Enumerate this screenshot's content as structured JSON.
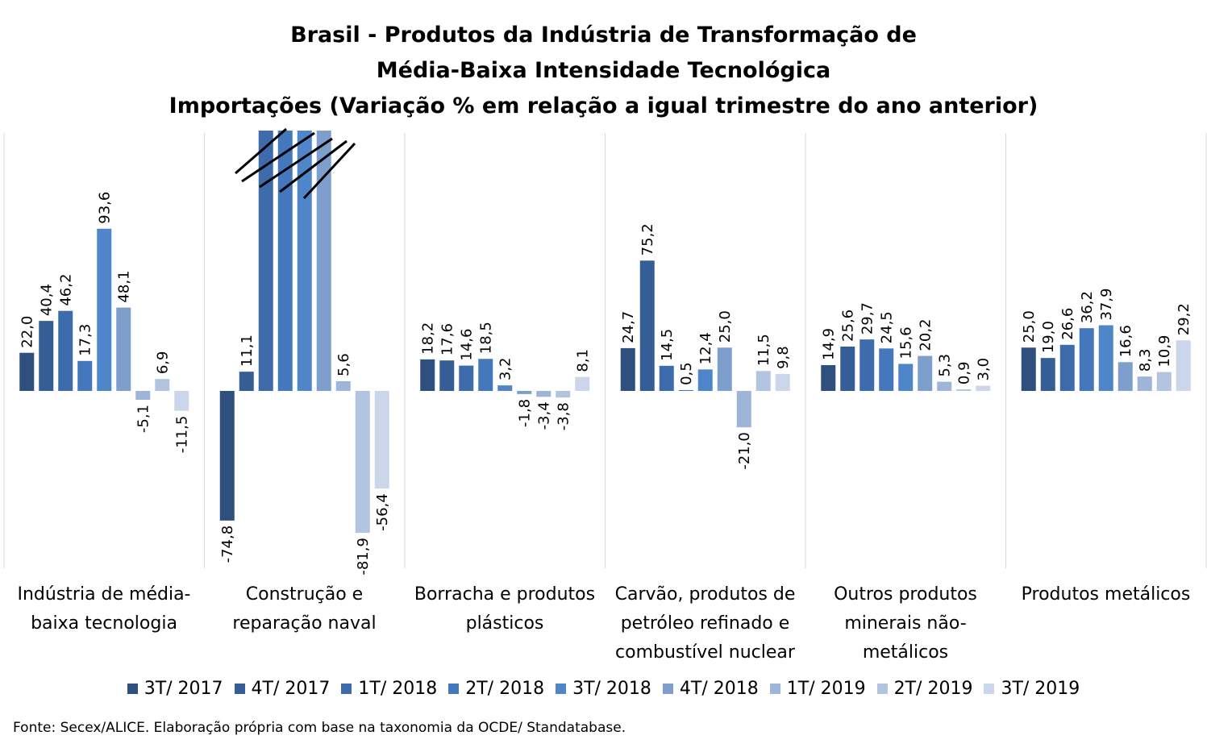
{
  "title_lines": [
    "Brasil - Produtos da Indústria de Transformação de",
    "Média-Baixa Intensidade Tecnológica",
    "Importações (Variação % em relação a igual trimestre do ano anterior)"
  ],
  "source": "Fonte: Secex/ALICE. Elaboração própria com base na taxonomia da OCDE/ Standatabase.",
  "chart_data": {
    "type": "bar",
    "title": "Brasil - Produtos da Indústria de Transformação de Média-Baixa Intensidade Tecnológica Importações (Variação % em relação a igual trimestre do ano anterior)",
    "categories": [
      "Indústria de média-baixa tecnologia",
      "Construção e reparação naval",
      "Borracha e produtos plásticos",
      "Carvão, produtos de petróleo refinado e combustível nuclear",
      "Outros produtos minerais não-metálicos",
      "Produtos metálicos"
    ],
    "category_label_lines": [
      [
        "Indústria de média-",
        "baixa tecnologia"
      ],
      [
        "Construção e",
        "reparação naval"
      ],
      [
        "Borracha e produtos",
        "plásticos"
      ],
      [
        "Carvão, produtos de",
        "petróleo refinado e",
        "combustível nuclear"
      ],
      [
        "Outros produtos",
        "minerais não-",
        "metálicos"
      ],
      [
        "Produtos metálicos"
      ]
    ],
    "series": [
      {
        "name": "3T/ 2017",
        "color": "#2f4f7f",
        "values": [
          22.0,
          -74.8,
          18.2,
          24.7,
          14.9,
          25.0
        ],
        "labels": [
          "22,0",
          "-74,8",
          "18,2",
          "24,7",
          "14,9",
          "25,0"
        ]
      },
      {
        "name": "4T/ 2017",
        "color": "#355e96",
        "values": [
          40.4,
          11.1,
          17.6,
          75.2,
          25.6,
          19.0
        ],
        "labels": [
          "40,4",
          "11,1",
          "17,6",
          "75,2",
          "25,6",
          "19,0"
        ]
      },
      {
        "name": "1T/ 2018",
        "color": "#3d6bab",
        "values": [
          46.2,
          null,
          14.6,
          14.5,
          29.7,
          26.6
        ],
        "labels": [
          "46,2",
          "",
          "14,6",
          "14,5",
          "29,7",
          "26,6"
        ]
      },
      {
        "name": "2T/ 2018",
        "color": "#4577bd",
        "values": [
          17.3,
          null,
          18.5,
          0.5,
          24.5,
          36.2
        ],
        "labels": [
          "17,3",
          "",
          "18,5",
          "0,5",
          "24,5",
          "36,2"
        ]
      },
      {
        "name": "3T/ 2018",
        "color": "#4f86c9",
        "values": [
          93.6,
          null,
          3.2,
          12.4,
          15.6,
          37.9
        ],
        "labels": [
          "93,6",
          "",
          "3,2",
          "12,4",
          "15,6",
          "37,9"
        ]
      },
      {
        "name": "4T/ 2018",
        "color": "#7e9ecb",
        "values": [
          48.1,
          null,
          -1.8,
          25.0,
          20.2,
          16.6
        ],
        "labels": [
          "48,1",
          "",
          "-1,8",
          "25,0",
          "20,2",
          "16,6"
        ]
      },
      {
        "name": "1T/ 2019",
        "color": "#9eb4d8",
        "values": [
          -5.1,
          5.6,
          -3.4,
          -21.0,
          5.3,
          8.3
        ],
        "labels": [
          "-5,1",
          "5,6",
          "-3,4",
          "-21,0",
          "5,3",
          "8,3"
        ]
      },
      {
        "name": "2T/ 2019",
        "color": "#b3c4e1",
        "values": [
          6.9,
          -81.9,
          -3.8,
          11.5,
          0.9,
          10.9
        ],
        "labels": [
          "6,9",
          "-81,9",
          "-3,8",
          "11,5",
          "0,9",
          "10,9"
        ]
      },
      {
        "name": "3T/ 2019",
        "color": "#cbd6ea",
        "values": [
          -11.5,
          -56.4,
          8.1,
          9.8,
          3.0,
          29.2
        ],
        "labels": [
          "-11,5",
          "-56,4",
          "8,1",
          "9,8",
          "3,0",
          "29,2"
        ]
      }
    ],
    "truncated_bars": {
      "category": "Construção e reparação naval",
      "series": [
        "1T/ 2018",
        "2T/ 2018",
        "3T/ 2018",
        "4T/ 2018"
      ],
      "note": "bars exceed the axis, marked with hatch lines, no labels"
    },
    "legend_position": "bottom",
    "gridlines": false
  }
}
